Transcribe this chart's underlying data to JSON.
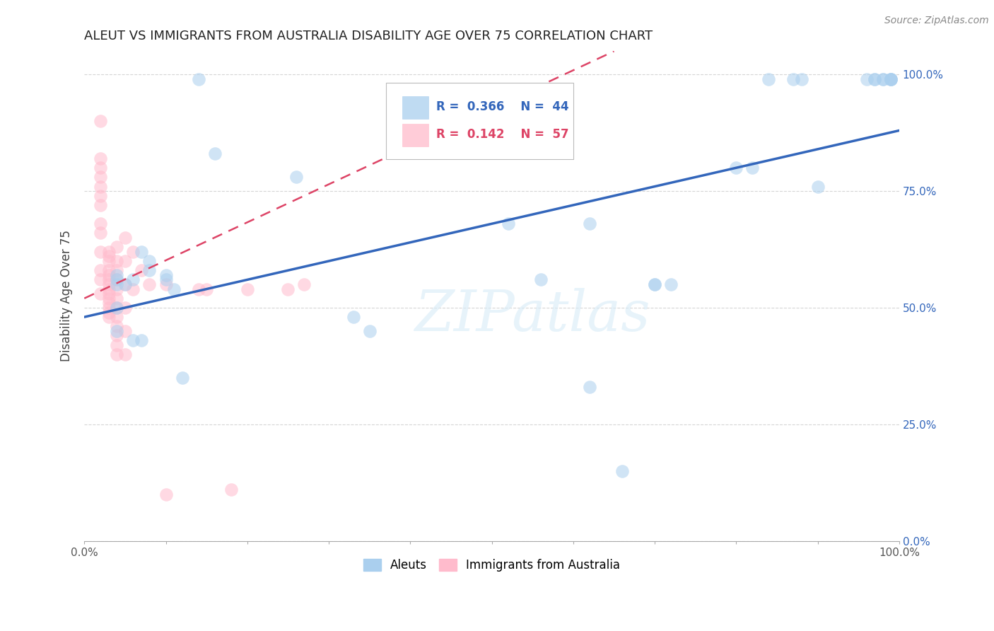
{
  "title": "ALEUT VS IMMIGRANTS FROM AUSTRALIA DISABILITY AGE OVER 75 CORRELATION CHART",
  "source": "Source: ZipAtlas.com",
  "ylabel": "Disability Age Over 75",
  "xlim": [
    0.0,
    1.0
  ],
  "ylim": [
    0.0,
    1.05
  ],
  "xticks": [
    0.0,
    0.1,
    0.2,
    0.3,
    0.4,
    0.5,
    0.6,
    0.7,
    0.8,
    0.9,
    1.0
  ],
  "yticks": [
    0.0,
    0.25,
    0.5,
    0.75,
    1.0
  ],
  "xticklabels": [
    "0.0%",
    "",
    "",
    "",
    "",
    "",
    "",
    "",
    "",
    "",
    "100.0%"
  ],
  "yticklabels": [
    "0.0%",
    "25.0%",
    "50.0%",
    "75.0%",
    "100.0%"
  ],
  "legend_labels": [
    "Aleuts",
    "Immigrants from Australia"
  ],
  "legend_R_N": [
    {
      "R": "0.366",
      "N": "44"
    },
    {
      "R": "0.142",
      "N": "57"
    }
  ],
  "blue_color": "#aacfee",
  "pink_color": "#ffbbcc",
  "blue_line_color": "#3366bb",
  "pink_line_color": "#dd4466",
  "background_color": "#ffffff",
  "grid_color": "#cccccc",
  "aleuts_x": [
    0.14,
    0.16,
    0.04,
    0.04,
    0.04,
    0.05,
    0.06,
    0.07,
    0.08,
    0.08,
    0.1,
    0.1,
    0.11,
    0.04,
    0.04,
    0.06,
    0.07,
    0.12,
    0.26,
    0.33,
    0.35,
    0.52,
    0.56,
    0.62,
    0.66,
    0.7,
    0.72,
    0.82,
    0.84,
    0.87,
    0.88,
    0.96,
    0.97,
    0.97,
    0.98,
    0.98,
    0.99,
    0.99,
    0.99,
    0.99,
    0.62,
    0.7,
    0.8,
    0.9
  ],
  "aleuts_y": [
    0.99,
    0.83,
    0.57,
    0.56,
    0.55,
    0.55,
    0.56,
    0.62,
    0.6,
    0.58,
    0.57,
    0.56,
    0.54,
    0.5,
    0.45,
    0.43,
    0.43,
    0.35,
    0.78,
    0.48,
    0.45,
    0.68,
    0.56,
    0.33,
    0.15,
    0.55,
    0.55,
    0.8,
    0.99,
    0.99,
    0.99,
    0.99,
    0.99,
    0.99,
    0.99,
    0.99,
    0.99,
    0.99,
    0.99,
    0.99,
    0.68,
    0.55,
    0.8,
    0.76
  ],
  "immigrants_x": [
    0.02,
    0.02,
    0.02,
    0.02,
    0.02,
    0.02,
    0.02,
    0.02,
    0.02,
    0.02,
    0.02,
    0.02,
    0.02,
    0.03,
    0.03,
    0.03,
    0.03,
    0.03,
    0.03,
    0.03,
    0.03,
    0.03,
    0.03,
    0.03,
    0.03,
    0.03,
    0.03,
    0.04,
    0.04,
    0.04,
    0.04,
    0.04,
    0.04,
    0.04,
    0.04,
    0.04,
    0.04,
    0.04,
    0.04,
    0.05,
    0.05,
    0.05,
    0.05,
    0.05,
    0.05,
    0.06,
    0.06,
    0.07,
    0.08,
    0.1,
    0.14,
    0.15,
    0.18,
    0.2,
    0.25,
    0.27,
    0.1
  ],
  "immigrants_y": [
    0.9,
    0.82,
    0.8,
    0.78,
    0.76,
    0.74,
    0.72,
    0.68,
    0.66,
    0.62,
    0.58,
    0.56,
    0.53,
    0.62,
    0.61,
    0.6,
    0.58,
    0.57,
    0.56,
    0.55,
    0.54,
    0.53,
    0.52,
    0.51,
    0.5,
    0.49,
    0.48,
    0.63,
    0.6,
    0.58,
    0.56,
    0.54,
    0.52,
    0.5,
    0.48,
    0.46,
    0.44,
    0.42,
    0.4,
    0.65,
    0.6,
    0.55,
    0.5,
    0.45,
    0.4,
    0.62,
    0.54,
    0.58,
    0.55,
    0.55,
    0.54,
    0.54,
    0.11,
    0.54,
    0.54,
    0.55,
    0.1
  ],
  "blue_line_x0": 0.0,
  "blue_line_y0": 0.48,
  "blue_line_x1": 1.0,
  "blue_line_y1": 0.88,
  "pink_line_x0": 0.0,
  "pink_line_y0": 0.52,
  "pink_line_x1": 0.65,
  "pink_line_y1": 1.05
}
